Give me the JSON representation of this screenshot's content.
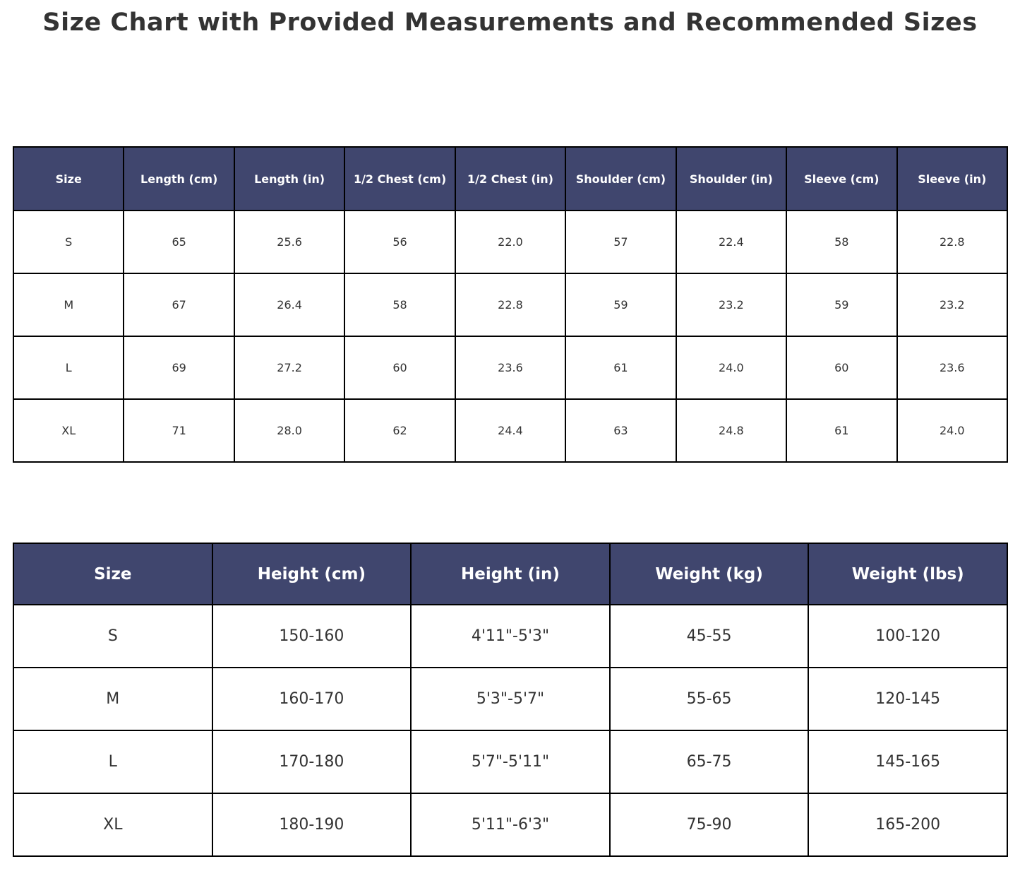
{
  "title": "Size Chart with Provided Measurements and Recommended Sizes",
  "colors": {
    "header_bg": "#40466e",
    "header_text": "#ffffff",
    "cell_text": "#333333",
    "border": "#000000",
    "background": "#ffffff"
  },
  "chart_data": [
    {
      "type": "table",
      "name": "provided_measurements",
      "columns": [
        "Size",
        "Length (cm)",
        "Length (in)",
        "1/2 Chest (cm)",
        "1/2 Chest (in)",
        "Shoulder (cm)",
        "Shoulder (in)",
        "Sleeve (cm)",
        "Sleeve (in)"
      ],
      "rows": [
        [
          "S",
          "65",
          "25.6",
          "56",
          "22.0",
          "57",
          "22.4",
          "58",
          "22.8"
        ],
        [
          "M",
          "67",
          "26.4",
          "58",
          "22.8",
          "59",
          "23.2",
          "59",
          "23.2"
        ],
        [
          "L",
          "69",
          "27.2",
          "60",
          "23.6",
          "61",
          "24.0",
          "60",
          "23.6"
        ],
        [
          "XL",
          "71",
          "28.0",
          "62",
          "24.4",
          "63",
          "24.8",
          "61",
          "24.0"
        ]
      ]
    },
    {
      "type": "table",
      "name": "recommended_sizes",
      "columns": [
        "Size",
        "Height (cm)",
        "Height (in)",
        "Weight (kg)",
        "Weight (lbs)"
      ],
      "rows": [
        [
          "S",
          "150-160",
          "4'11\"-5'3\"",
          "45-55",
          "100-120"
        ],
        [
          "M",
          "160-170",
          "5'3\"-5'7\"",
          "55-65",
          "120-145"
        ],
        [
          "L",
          "170-180",
          "5'7\"-5'11\"",
          "65-75",
          "145-165"
        ],
        [
          "XL",
          "180-190",
          "5'11\"-6'3\"",
          "75-90",
          "165-200"
        ]
      ]
    }
  ]
}
